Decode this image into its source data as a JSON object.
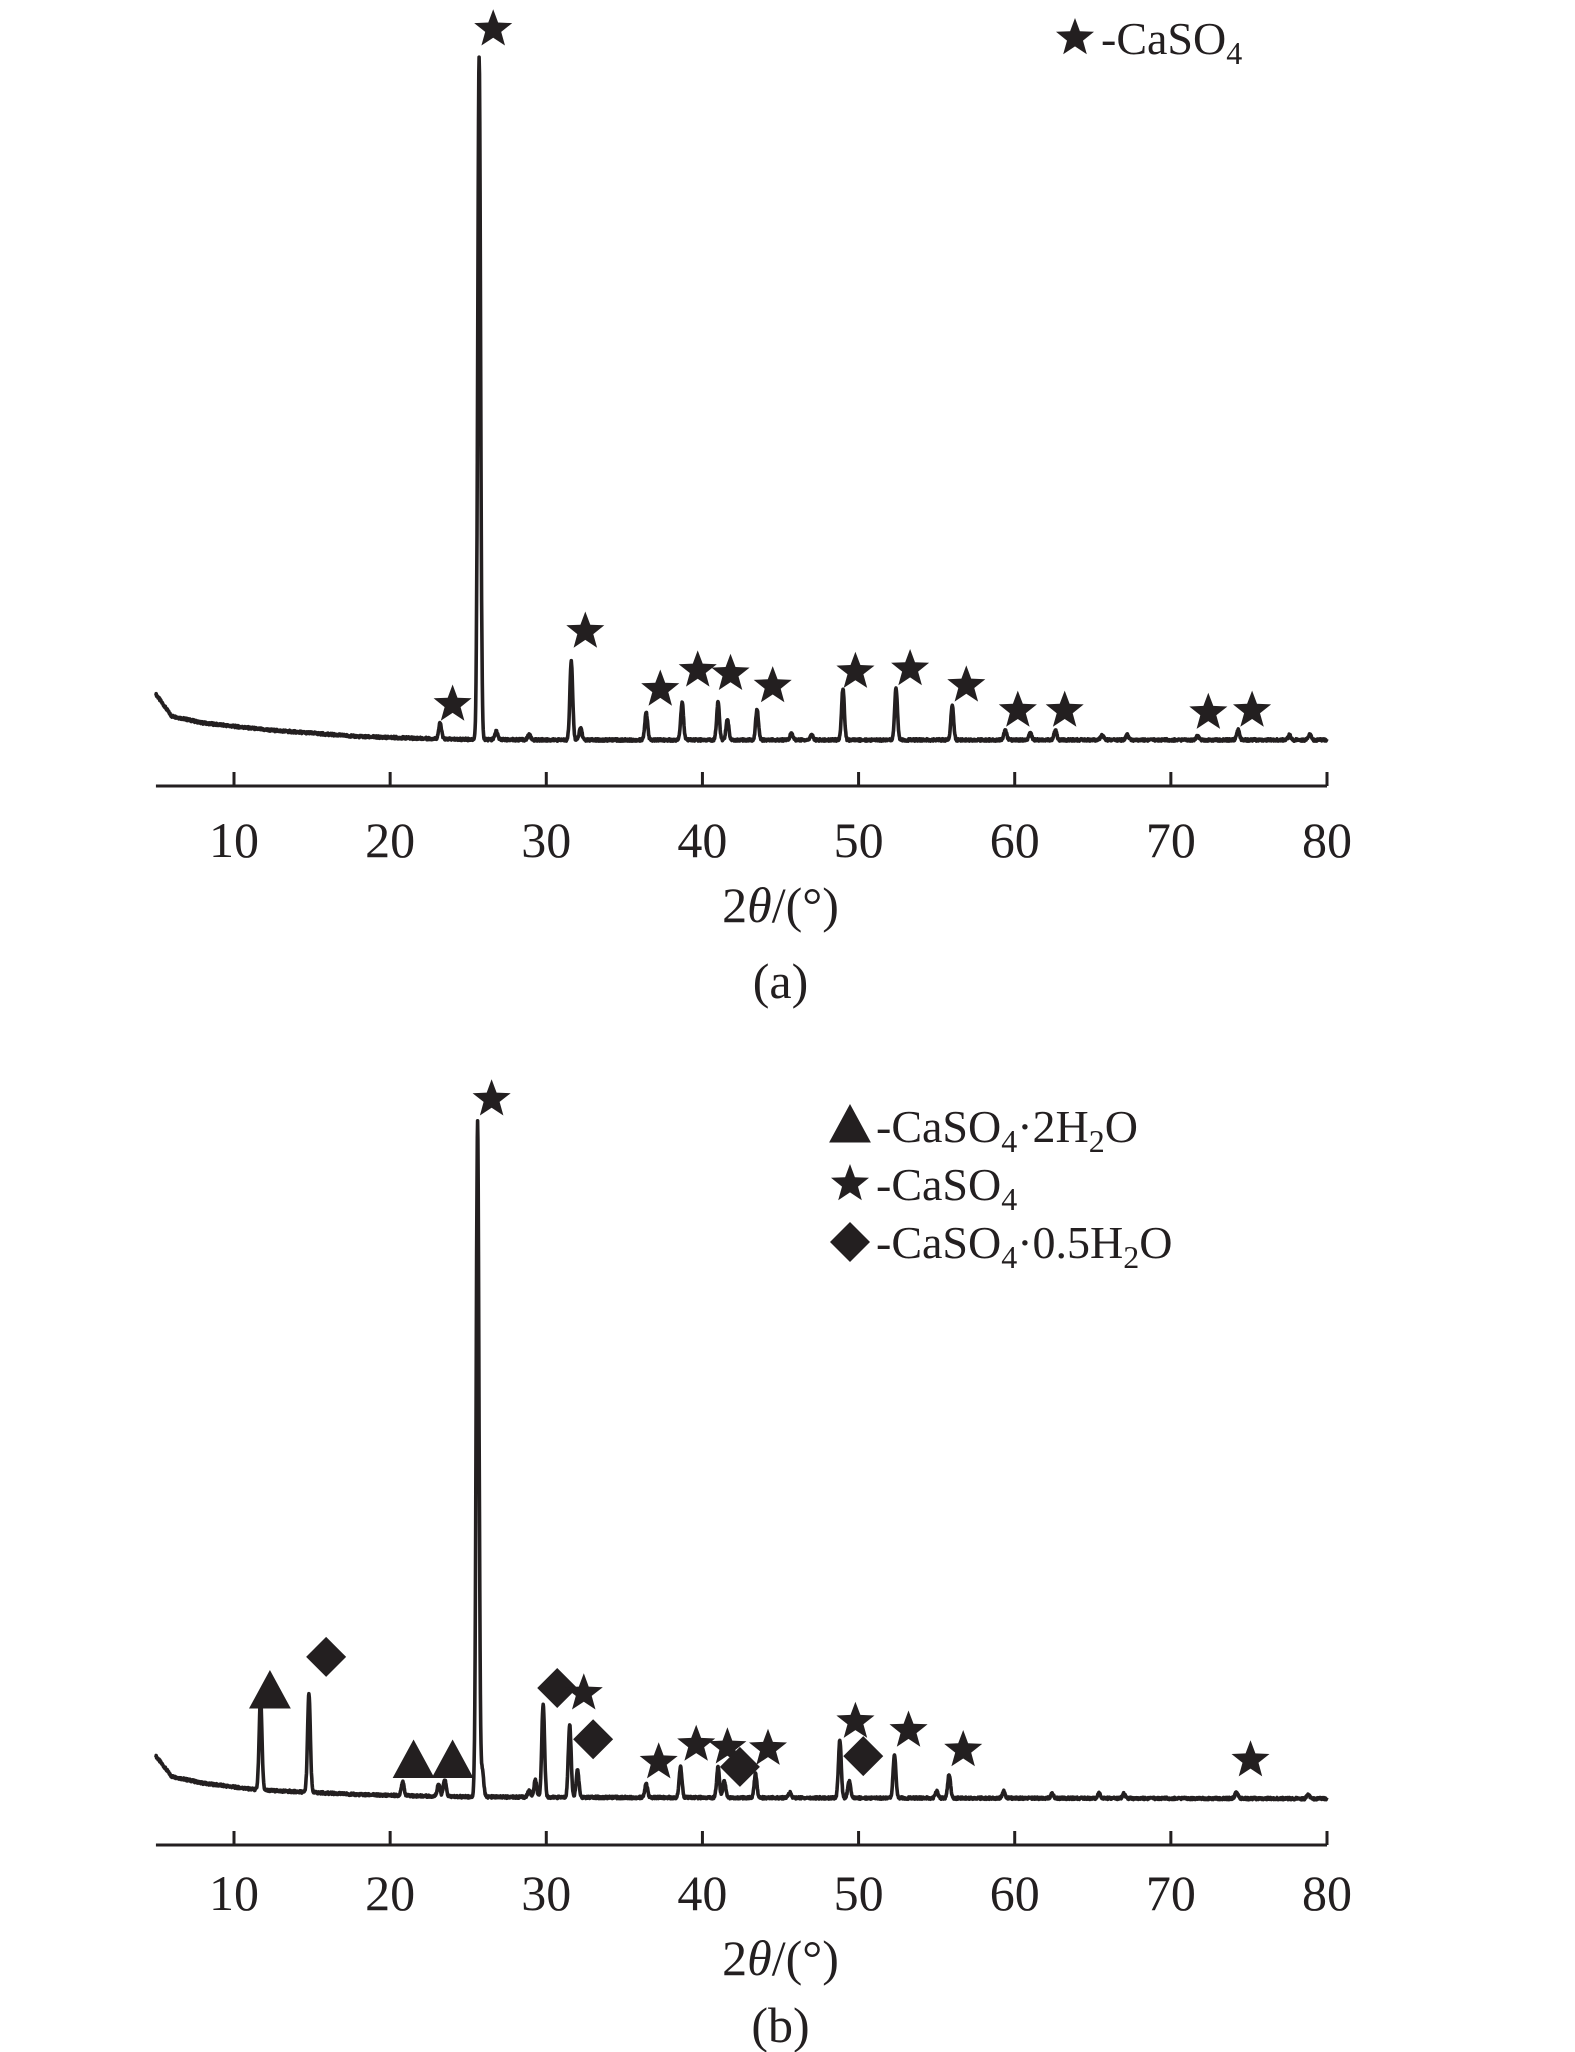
{
  "chart_data": [
    {
      "panel_label": "(a)",
      "type": "line",
      "xlabel_prefix": "2",
      "xlabel_var": "θ",
      "xlabel_suffix": "/(°)",
      "xlim": [
        5,
        80
      ],
      "xticks": [
        10,
        20,
        30,
        40,
        50,
        60,
        70,
        80
      ],
      "ylim": [
        0,
        100
      ],
      "yaxis_shown": false,
      "grid": false,
      "legend_position": "top-right",
      "legend": [
        {
          "marker": "star",
          "text": "-CaSO",
          "sub": "4",
          "text2": ""
        }
      ],
      "pattern": {
        "baseline": [
          [
            5,
            7
          ],
          [
            6,
            3.8
          ],
          [
            8,
            2.8
          ],
          [
            12,
            1.8
          ],
          [
            18,
            0.8
          ],
          [
            24,
            0.4
          ],
          [
            30,
            0.3
          ],
          [
            50,
            0.3
          ],
          [
            80,
            0.3
          ]
        ],
        "peaks": [
          [
            23.2,
            2.3
          ],
          [
            25.7,
            100
          ],
          [
            26.8,
            1.2
          ],
          [
            28.9,
            0.8
          ],
          [
            31.6,
            11.5
          ],
          [
            32.2,
            1.8
          ],
          [
            36.4,
            4.0
          ],
          [
            38.7,
            5.5
          ],
          [
            41.0,
            5.5
          ],
          [
            41.6,
            3.0
          ],
          [
            43.5,
            4.5
          ],
          [
            45.7,
            1.0
          ],
          [
            47.0,
            0.8
          ],
          [
            49.0,
            7.5
          ],
          [
            52.4,
            7.5
          ],
          [
            56.0,
            5.0
          ],
          [
            59.4,
            1.5
          ],
          [
            61.0,
            1.0
          ],
          [
            62.6,
            1.5
          ],
          [
            65.6,
            0.8
          ],
          [
            67.2,
            0.8
          ],
          [
            71.7,
            0.6
          ],
          [
            74.3,
            1.5
          ],
          [
            77.6,
            0.7
          ],
          [
            78.9,
            0.8
          ]
        ]
      },
      "markers": [
        {
          "type": "star",
          "x": 24.0,
          "y": 5.5
        },
        {
          "type": "star",
          "x": 26.6,
          "y": 104.5
        },
        {
          "type": "star",
          "x": 32.5,
          "y": 16.2
        },
        {
          "type": "star",
          "x": 37.3,
          "y": 7.7
        },
        {
          "type": "star",
          "x": 39.7,
          "y": 10.5
        },
        {
          "type": "star",
          "x": 41.8,
          "y": 10.0
        },
        {
          "type": "star",
          "x": 44.5,
          "y": 8.2
        },
        {
          "type": "star",
          "x": 49.8,
          "y": 10.3
        },
        {
          "type": "star",
          "x": 53.3,
          "y": 10.7
        },
        {
          "type": "star",
          "x": 56.9,
          "y": 8.3
        },
        {
          "type": "star",
          "x": 60.2,
          "y": 4.6
        },
        {
          "type": "star",
          "x": 63.2,
          "y": 4.6
        },
        {
          "type": "star",
          "x": 72.4,
          "y": 4.3
        },
        {
          "type": "star",
          "x": 75.2,
          "y": 4.6
        }
      ]
    },
    {
      "panel_label": "(b)",
      "type": "line",
      "xlabel_prefix": "2",
      "xlabel_var": "θ",
      "xlabel_suffix": "/(°)",
      "xlim": [
        5,
        80
      ],
      "xticks": [
        10,
        20,
        30,
        40,
        50,
        60,
        70,
        80
      ],
      "ylim": [
        0,
        100
      ],
      "yaxis_shown": false,
      "grid": false,
      "legend_position": "top-right",
      "legend": [
        {
          "marker": "triangle",
          "text": "-CaSO",
          "sub": "4",
          "text2": "·2H",
          "sub2": "2",
          "text3": "O"
        },
        {
          "marker": "star",
          "text": "-CaSO",
          "sub": "4",
          "text2": "",
          "sub2": "",
          "text3": ""
        },
        {
          "marker": "diamond",
          "text": "-CaSO",
          "sub": "4",
          "text2": "·0.5H",
          "sub2": "2",
          "text3": "O"
        }
      ],
      "pattern": {
        "baseline": [
          [
            5,
            6.5
          ],
          [
            6,
            3.5
          ],
          [
            8,
            2.5
          ],
          [
            11.5,
            1.5
          ],
          [
            18,
            0.8
          ],
          [
            24,
            0.5
          ],
          [
            30,
            0.4
          ],
          [
            50,
            0.3
          ],
          [
            80,
            0.2
          ]
        ],
        "peaks": [
          [
            11.7,
            13.5
          ],
          [
            14.8,
            14.5
          ],
          [
            20.8,
            2.0
          ],
          [
            23.1,
            1.8
          ],
          [
            23.5,
            2.5
          ],
          [
            25.6,
            100
          ],
          [
            25.9,
            4.0
          ],
          [
            28.9,
            1.0
          ],
          [
            29.3,
            2.5
          ],
          [
            29.8,
            13.8
          ],
          [
            31.5,
            10.8
          ],
          [
            32.0,
            4.0
          ],
          [
            36.4,
            2.0
          ],
          [
            38.6,
            4.5
          ],
          [
            41.0,
            4.5
          ],
          [
            41.4,
            2.5
          ],
          [
            43.4,
            3.5
          ],
          [
            45.6,
            0.8
          ],
          [
            48.8,
            8.5
          ],
          [
            49.4,
            2.5
          ],
          [
            52.3,
            6.3
          ],
          [
            55.0,
            1.0
          ],
          [
            55.8,
            3.5
          ],
          [
            59.3,
            1.0
          ],
          [
            62.4,
            0.7
          ],
          [
            65.4,
            0.7
          ],
          [
            67.0,
            0.7
          ],
          [
            74.2,
            1.0
          ],
          [
            78.8,
            0.6
          ]
        ]
      },
      "markers": [
        {
          "type": "triangle",
          "x": 12.3,
          "y": 16.0
        },
        {
          "type": "diamond",
          "x": 15.9,
          "y": 21.2
        },
        {
          "type": "triangle",
          "x": 21.5,
          "y": 5.7
        },
        {
          "type": "triangle",
          "x": 24.0,
          "y": 5.7
        },
        {
          "type": "star",
          "x": 26.5,
          "y": 103.8
        },
        {
          "type": "diamond",
          "x": 30.7,
          "y": 16.6
        },
        {
          "type": "star",
          "x": 32.4,
          "y": 15.8
        },
        {
          "type": "diamond",
          "x": 33.0,
          "y": 9.0
        },
        {
          "type": "star",
          "x": 37.2,
          "y": 5.6
        },
        {
          "type": "star",
          "x": 39.6,
          "y": 8.2
        },
        {
          "type": "star",
          "x": 41.6,
          "y": 7.8
        },
        {
          "type": "diamond",
          "x": 42.4,
          "y": 4.9
        },
        {
          "type": "star",
          "x": 44.2,
          "y": 7.6
        },
        {
          "type": "star",
          "x": 49.8,
          "y": 11.6
        },
        {
          "type": "diamond",
          "x": 50.3,
          "y": 6.5
        },
        {
          "type": "star",
          "x": 53.2,
          "y": 10.3
        },
        {
          "type": "star",
          "x": 56.7,
          "y": 7.4
        },
        {
          "type": "star",
          "x": 75.1,
          "y": 5.9
        }
      ]
    }
  ]
}
